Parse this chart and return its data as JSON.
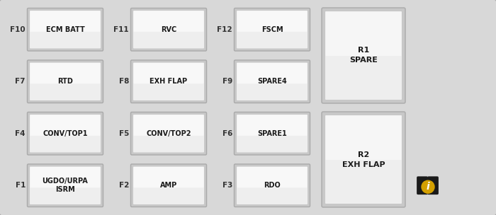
{
  "bg_color": "#d0d0d0",
  "outer_bg": "#d4d4d4",
  "fuse_outer": "#b8b8b8",
  "fuse_inner_light": "#f0f0f0",
  "fuse_inner_dark": "#cccccc",
  "relay_inner_light": "#f4f4f4",
  "relay_inner_dark": "#c8c8c8",
  "text_color": "#1a1a1a",
  "label_color": "#333333",
  "fuses": [
    {
      "id": "F10",
      "label": "ECM BATT",
      "col": 0,
      "row": 3
    },
    {
      "id": "F11",
      "label": "RVC",
      "col": 1,
      "row": 3
    },
    {
      "id": "F12",
      "label": "FSCM",
      "col": 2,
      "row": 3
    },
    {
      "id": "F7",
      "label": "RTD",
      "col": 0,
      "row": 2
    },
    {
      "id": "F8",
      "label": "EXH FLAP",
      "col": 1,
      "row": 2
    },
    {
      "id": "F9",
      "label": "SPARE4",
      "col": 2,
      "row": 2
    },
    {
      "id": "F4",
      "label": "CONV/TOP1",
      "col": 0,
      "row": 1
    },
    {
      "id": "F5",
      "label": "CONV/TOP2",
      "col": 1,
      "row": 1
    },
    {
      "id": "F6",
      "label": "SPARE1",
      "col": 2,
      "row": 1
    },
    {
      "id": "F1",
      "label": "UGDO/URPA\nISRM",
      "col": 0,
      "row": 0
    },
    {
      "id": "F2",
      "label": "AMP",
      "col": 1,
      "row": 0
    },
    {
      "id": "F3",
      "label": "RDO",
      "col": 2,
      "row": 0
    }
  ],
  "relays": [
    {
      "id": "R1",
      "label": "R1\nSPARE",
      "rows": [
        2,
        3
      ]
    },
    {
      "id": "R2",
      "label": "R2\nEXH FLAP",
      "rows": [
        0,
        1
      ]
    }
  ]
}
